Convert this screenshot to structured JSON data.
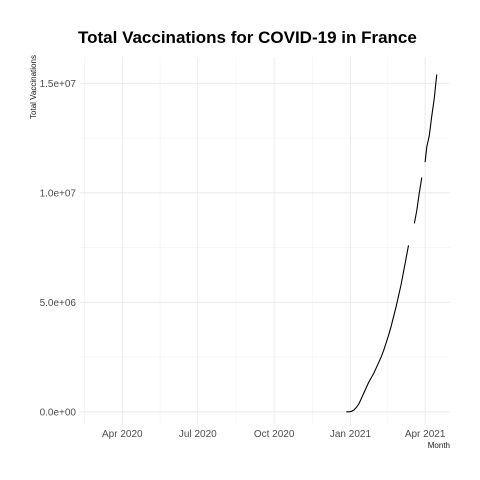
{
  "chart_data": {
    "type": "line",
    "title": "Total Vaccinations for COVID-19 in France",
    "xlabel": "Month",
    "ylabel": "Total Vaccinations",
    "x_axis": {
      "type": "date",
      "range": [
        "2020-02-10",
        "2021-05-01"
      ],
      "ticks": [
        "2020-04-01",
        "2020-07-01",
        "2020-10-01",
        "2021-01-01",
        "2021-04-01"
      ],
      "tick_labels": [
        "Apr 2020",
        "Jul 2020",
        "Oct 2020",
        "Jan 2021",
        "Apr 2021"
      ]
    },
    "y_axis": {
      "range": [
        -600000,
        16200000
      ],
      "ticks": [
        0,
        5000000,
        10000000,
        15000000
      ],
      "tick_labels": [
        "0.0e+00",
        "5.0e+06",
        "1.0e+07",
        "1.5e+07"
      ]
    },
    "grid": true,
    "series": [
      {
        "color": "#000000",
        "segments": [
          [
            [
              "2020-12-27",
              0
            ],
            [
              "2020-12-30",
              2000
            ],
            [
              "2021-01-02",
              20000
            ],
            [
              "2021-01-05",
              80000
            ],
            [
              "2021-01-08",
              200000
            ],
            [
              "2021-01-11",
              350000
            ],
            [
              "2021-01-14",
              600000
            ],
            [
              "2021-01-17",
              850000
            ],
            [
              "2021-01-20",
              1100000
            ],
            [
              "2021-01-23",
              1350000
            ],
            [
              "2021-01-26",
              1550000
            ],
            [
              "2021-01-29",
              1750000
            ],
            [
              "2021-02-01",
              2000000
            ],
            [
              "2021-02-04",
              2250000
            ],
            [
              "2021-02-07",
              2500000
            ],
            [
              "2021-02-10",
              2800000
            ],
            [
              "2021-02-13",
              3150000
            ],
            [
              "2021-02-16",
              3500000
            ],
            [
              "2021-02-19",
              3900000
            ],
            [
              "2021-02-22",
              4350000
            ],
            [
              "2021-02-25",
              4800000
            ],
            [
              "2021-02-28",
              5300000
            ],
            [
              "2021-03-03",
              5800000
            ],
            [
              "2021-03-06",
              6400000
            ],
            [
              "2021-03-09",
              7000000
            ],
            [
              "2021-03-12",
              7600000
            ]
          ],
          [
            [
              "2021-03-19",
              8600000
            ],
            [
              "2021-03-22",
              9200000
            ],
            [
              "2021-03-25",
              10000000
            ],
            [
              "2021-03-28",
              10700000
            ]
          ],
          [
            [
              "2021-04-01",
              11400000
            ],
            [
              "2021-04-03",
              12100000
            ],
            [
              "2021-04-06",
              12600000
            ],
            [
              "2021-04-09",
              13500000
            ],
            [
              "2021-04-12",
              14300000
            ],
            [
              "2021-04-15",
              15400000
            ]
          ]
        ]
      }
    ]
  }
}
